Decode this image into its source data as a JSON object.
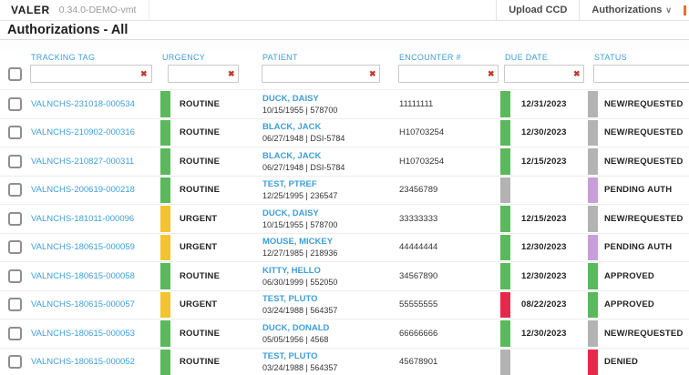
{
  "app": {
    "brand": "VALER",
    "version": "0.34.0-DEMO-vmt",
    "page_title": "Authorizations - All",
    "nav": {
      "upload_ccd": "Upload CCD",
      "authorizations": "Authorizations"
    }
  },
  "icons": {
    "clear": "✖",
    "caret": "∨"
  },
  "colors": {
    "green": "#5cb85c",
    "yellow": "#f2c431",
    "gray": "#b3b3b3",
    "purple": "#c79fd9",
    "red": "#e6294b"
  },
  "table": {
    "columns": [
      "TRACKING TAG",
      "URGENCY",
      "PATIENT",
      "ENCOUNTER #",
      "DUE DATE",
      "STATUS"
    ],
    "rows": [
      {
        "tracking": "VALNCHS-231018-000534",
        "urgency": "ROUTINE",
        "urgency_color": "green",
        "patient_name": "DUCK, DAISY",
        "patient_info": "10/15/1955 | 578700",
        "encounter": "11111111",
        "due_date": "12/31/2023",
        "due_color": "green",
        "status": "NEW/REQUESTED",
        "status_color": "gray"
      },
      {
        "tracking": "VALNCHS-210902-000316",
        "urgency": "ROUTINE",
        "urgency_color": "green",
        "patient_name": "BLACK, JACK",
        "patient_info": "06/27/1948 | DSI-5784",
        "encounter": "H10703254",
        "due_date": "12/30/2023",
        "due_color": "green",
        "status": "NEW/REQUESTED",
        "status_color": "gray"
      },
      {
        "tracking": "VALNCHS-210827-000311",
        "urgency": "ROUTINE",
        "urgency_color": "green",
        "patient_name": "BLACK, JACK",
        "patient_info": "06/27/1948 | DSI-5784",
        "encounter": "H10703254",
        "due_date": "12/15/2023",
        "due_color": "green",
        "status": "NEW/REQUESTED",
        "status_color": "gray"
      },
      {
        "tracking": "VALNCHS-200619-000218",
        "urgency": "ROUTINE",
        "urgency_color": "green",
        "patient_name": "TEST, PTREF",
        "patient_info": "12/25/1995 | 236547",
        "encounter": "23456789",
        "due_date": "",
        "due_color": "gray",
        "status": "PENDING AUTH",
        "status_color": "purple"
      },
      {
        "tracking": "VALNCHS-181011-000096",
        "urgency": "URGENT",
        "urgency_color": "yellow",
        "patient_name": "DUCK, DAISY",
        "patient_info": "10/15/1955 | 578700",
        "encounter": "33333333",
        "due_date": "12/15/2023",
        "due_color": "green",
        "status": "NEW/REQUESTED",
        "status_color": "gray"
      },
      {
        "tracking": "VALNCHS-180615-000059",
        "urgency": "URGENT",
        "urgency_color": "yellow",
        "patient_name": "MOUSE, MICKEY",
        "patient_info": "12/27/1985 | 218936",
        "encounter": "44444444",
        "due_date": "12/30/2023",
        "due_color": "green",
        "status": "PENDING AUTH",
        "status_color": "purple"
      },
      {
        "tracking": "VALNCHS-180615-000058",
        "urgency": "ROUTINE",
        "urgency_color": "green",
        "patient_name": "KITTY, HELLO",
        "patient_info": "06/30/1999 | 552050",
        "encounter": "34567890",
        "due_date": "12/30/2023",
        "due_color": "green",
        "status": "APPROVED",
        "status_color": "green"
      },
      {
        "tracking": "VALNCHS-180615-000057",
        "urgency": "URGENT",
        "urgency_color": "yellow",
        "patient_name": "TEST, PLUTO",
        "patient_info": "03/24/1988 | 564357",
        "encounter": "55555555",
        "due_date": "08/22/2023",
        "due_color": "red",
        "status": "APPROVED",
        "status_color": "green"
      },
      {
        "tracking": "VALNCHS-180615-000053",
        "urgency": "ROUTINE",
        "urgency_color": "green",
        "patient_name": "DUCK, DONALD",
        "patient_info": "05/05/1956 | 4568",
        "encounter": "66666666",
        "due_date": "12/30/2023",
        "due_color": "green",
        "status": "NEW/REQUESTED",
        "status_color": "gray"
      },
      {
        "tracking": "VALNCHS-180615-000052",
        "urgency": "ROUTINE",
        "urgency_color": "green",
        "patient_name": "TEST, PLUTO",
        "patient_info": "03/24/1988 | 564357",
        "encounter": "45678901",
        "due_date": "",
        "due_color": "gray",
        "status": "DENIED",
        "status_color": "red"
      }
    ]
  }
}
